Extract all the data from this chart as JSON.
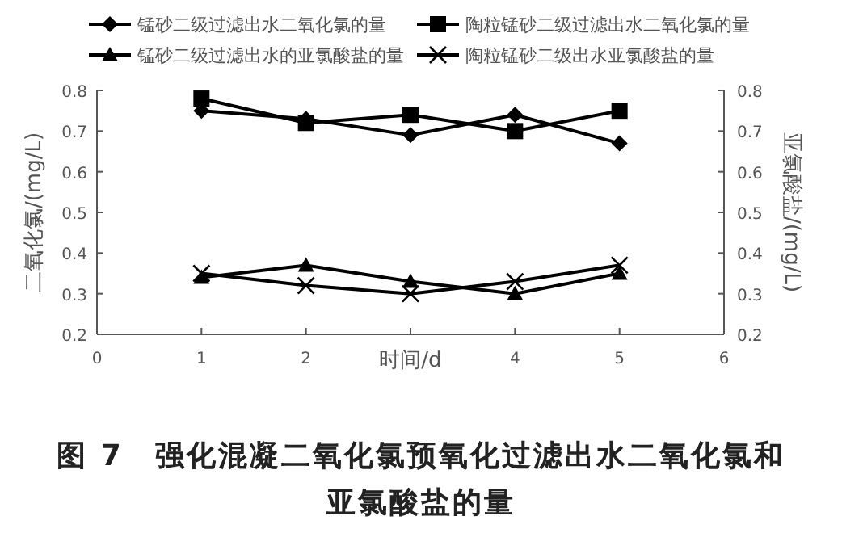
{
  "chart_data": {
    "type": "line",
    "title": "图 7　强化混凝二氧化氯预氧化过滤出水二氧化氯和亚氯酸盐的量",
    "xlabel": "时间/d",
    "ylabel": "二氧化氯/(mg/L)",
    "y2label": "亚氯酸盐/(mg/L)",
    "x": [
      1,
      2,
      3,
      4,
      5
    ],
    "series": [
      {
        "name": "锰砂二级过滤出水二氧化氯的量",
        "color": "#000000",
        "marker": "diamond",
        "values": [
          0.75,
          0.73,
          0.69,
          0.74,
          0.67
        ]
      },
      {
        "name": "陶粒锰砂二级过滤出水二氧化氯的量",
        "color": "#000000",
        "marker": "square",
        "values": [
          0.78,
          0.72,
          0.74,
          0.7,
          0.75
        ]
      },
      {
        "name": "锰砂二级过滤出水的亚氯酸盐的量",
        "color": "#000000",
        "marker": "triangle",
        "values": [
          0.34,
          0.37,
          0.33,
          0.3,
          0.35
        ]
      },
      {
        "name": "陶粒锰砂二级出水亚氯酸盐的量",
        "color": "#000000",
        "marker": "cross",
        "values": [
          0.35,
          0.32,
          0.3,
          0.33,
          0.37
        ]
      }
    ],
    "xlim": [
      0,
      6
    ],
    "xticks": [
      0,
      1,
      2,
      {
        "value": 3,
        "label": null
      },
      4,
      5,
      6
    ],
    "ylim": [
      0.2,
      0.8
    ],
    "yticks": [
      0.2,
      0.3,
      0.4,
      0.5,
      0.6,
      0.7,
      0.8
    ],
    "y2lim": [
      0.2,
      0.8
    ],
    "y2ticks": [
      0.2,
      0.3,
      0.4,
      0.5,
      0.6,
      0.7,
      0.8
    ],
    "grid": false,
    "legend": "top",
    "line_style": "solid"
  }
}
